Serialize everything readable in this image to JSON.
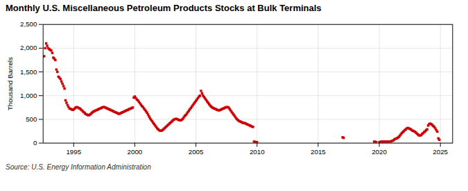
{
  "chart_data": {
    "type": "scatter",
    "title": "Monthly U.S. Miscellaneous Petroleum Products Stocks at Bulk Terminals",
    "ylabel": "Thousand Barrels",
    "annotations": [
      "Source: U.S. Energy Information Administration"
    ],
    "color": "#cc0000",
    "marker": "square",
    "grid": true,
    "xlim": [
      1992.5,
      2026.0
    ],
    "ylim": [
      0,
      2500
    ],
    "xticks": [
      1995,
      2000,
      2005,
      2010,
      2015,
      2020,
      2025
    ],
    "yticks": [
      0,
      500,
      {
        "value": 1000,
        "label": "1,000"
      },
      {
        "value": 1500,
        "label": "1,500"
      },
      {
        "value": 2000,
        "label": "2,000"
      },
      {
        "value": 2500,
        "label": "2,500"
      }
    ],
    "x": [
      1992.583,
      1992.667,
      1992.75,
      1992.833,
      1992.917,
      1993.0,
      1993.083,
      1993.167,
      1993.25,
      1993.333,
      1993.417,
      1993.5,
      1993.583,
      1993.667,
      1993.75,
      1993.833,
      1993.917,
      1994.0,
      1994.083,
      1994.167,
      1994.25,
      1994.333,
      1994.417,
      1994.5,
      1994.583,
      1994.667,
      1994.75,
      1994.833,
      1994.917,
      1995.0,
      1995.083,
      1995.167,
      1995.25,
      1995.333,
      1995.417,
      1995.5,
      1995.583,
      1995.667,
      1995.75,
      1995.833,
      1995.917,
      1996.0,
      1996.083,
      1996.167,
      1996.25,
      1996.333,
      1996.417,
      1996.5,
      1996.583,
      1996.667,
      1996.75,
      1996.833,
      1996.917,
      1997.0,
      1997.083,
      1997.167,
      1997.25,
      1997.333,
      1997.417,
      1997.5,
      1997.583,
      1997.667,
      1997.75,
      1997.833,
      1997.917,
      1998.0,
      1998.083,
      1998.167,
      1998.25,
      1998.333,
      1998.417,
      1998.5,
      1998.583,
      1998.667,
      1998.75,
      1998.833,
      1998.917,
      1999.0,
      1999.083,
      1999.167,
      1999.25,
      1999.333,
      1999.417,
      1999.5,
      1999.583,
      1999.667,
      1999.75,
      1999.833,
      1999.917,
      2000.0,
      2000.083,
      2000.167,
      2000.25,
      2000.333,
      2000.417,
      2000.5,
      2000.583,
      2000.667,
      2000.75,
      2000.833,
      2000.917,
      2001.0,
      2001.083,
      2001.167,
      2001.25,
      2001.333,
      2001.417,
      2001.5,
      2001.583,
      2001.667,
      2001.75,
      2001.833,
      2001.917,
      2002.0,
      2002.083,
      2002.167,
      2002.25,
      2002.333,
      2002.417,
      2002.5,
      2002.583,
      2002.667,
      2002.75,
      2002.833,
      2002.917,
      2003.0,
      2003.083,
      2003.167,
      2003.25,
      2003.333,
      2003.417,
      2003.5,
      2003.583,
      2003.667,
      2003.75,
      2003.833,
      2003.917,
      2004.0,
      2004.083,
      2004.167,
      2004.25,
      2004.333,
      2004.417,
      2004.5,
      2004.583,
      2004.667,
      2004.75,
      2004.833,
      2004.917,
      2005.0,
      2005.083,
      2005.167,
      2005.25,
      2005.333,
      2005.417,
      2005.5,
      2005.583,
      2005.667,
      2005.75,
      2005.833,
      2005.917,
      2006.0,
      2006.083,
      2006.167,
      2006.25,
      2006.333,
      2006.417,
      2006.5,
      2006.583,
      2006.667,
      2006.75,
      2006.833,
      2006.917,
      2007.0,
      2007.083,
      2007.167,
      2007.25,
      2007.333,
      2007.417,
      2007.5,
      2007.583,
      2007.667,
      2007.75,
      2007.833,
      2007.917,
      2008.0,
      2008.083,
      2008.167,
      2008.25,
      2008.333,
      2008.417,
      2008.5,
      2008.583,
      2008.667,
      2008.75,
      2008.833,
      2008.917,
      2009.0,
      2009.083,
      2009.167,
      2009.25,
      2009.333,
      2009.417,
      2009.5,
      2009.583,
      2009.667,
      2009.75,
      2009.833,
      2009.917,
      2010.0,
      2017.0,
      2017.083,
      2019.583,
      2019.667,
      2019.75,
      2020.0,
      2020.083,
      2020.167,
      2020.25,
      2020.333,
      2020.417,
      2020.5,
      2020.583,
      2020.667,
      2020.75,
      2020.833,
      2020.917,
      2021.0,
      2021.083,
      2021.167,
      2021.25,
      2021.333,
      2021.417,
      2021.5,
      2021.583,
      2021.667,
      2021.75,
      2021.833,
      2021.917,
      2022.0,
      2022.083,
      2022.167,
      2022.25,
      2022.333,
      2022.417,
      2022.5,
      2022.583,
      2022.667,
      2022.75,
      2022.833,
      2022.917,
      2023.0,
      2023.083,
      2023.167,
      2023.25,
      2023.333,
      2023.417,
      2023.5,
      2023.583,
      2023.667,
      2023.75,
      2023.833,
      2023.917,
      2024.0,
      2024.083,
      2024.167,
      2024.25,
      2024.333,
      2024.417,
      2024.5,
      2024.583,
      2024.667,
      2024.75,
      2024.833,
      2024.917
    ],
    "values": [
      1830,
      2000,
      2100,
      2050,
      2000,
      1980,
      1960,
      1950,
      1900,
      1800,
      1780,
      1750,
      1550,
      1500,
      1400,
      1380,
      1350,
      1300,
      1250,
      1200,
      1150,
      900,
      850,
      800,
      760,
      730,
      720,
      710,
      700,
      710,
      730,
      750,
      760,
      750,
      740,
      730,
      710,
      690,
      670,
      650,
      630,
      610,
      600,
      590,
      590,
      600,
      620,
      640,
      660,
      670,
      680,
      690,
      700,
      710,
      720,
      730,
      740,
      750,
      760,
      760,
      750,
      740,
      730,
      720,
      710,
      700,
      690,
      680,
      670,
      660,
      650,
      640,
      630,
      620,
      620,
      630,
      640,
      650,
      660,
      670,
      680,
      690,
      700,
      710,
      720,
      730,
      740,
      750,
      960,
      980,
      950,
      920,
      900,
      870,
      840,
      810,
      780,
      760,
      730,
      700,
      670,
      640,
      600,
      560,
      520,
      490,
      460,
      430,
      400,
      370,
      340,
      310,
      290,
      270,
      260,
      260,
      270,
      290,
      310,
      330,
      350,
      370,
      390,
      410,
      430,
      450,
      470,
      490,
      500,
      510,
      510,
      500,
      490,
      480,
      480,
      490,
      510,
      540,
      570,
      590,
      620,
      650,
      680,
      710,
      740,
      770,
      800,
      830,
      860,
      890,
      920,
      950,
      980,
      1000,
      1100,
      1050,
      1000,
      970,
      940,
      910,
      880,
      850,
      820,
      790,
      770,
      750,
      740,
      730,
      720,
      710,
      700,
      690,
      690,
      700,
      710,
      720,
      730,
      740,
      750,
      760,
      760,
      750,
      720,
      690,
      660,
      630,
      600,
      570,
      540,
      510,
      490,
      470,
      460,
      450,
      440,
      430,
      420,
      420,
      410,
      400,
      390,
      380,
      370,
      360,
      350,
      340,
      30,
      25,
      20,
      20,
      120,
      110,
      30,
      25,
      20,
      20,
      25,
      30,
      30,
      30,
      30,
      30,
      30,
      30,
      30,
      30,
      30,
      40,
      50,
      60,
      80,
      90,
      100,
      110,
      130,
      150,
      180,
      210,
      230,
      250,
      270,
      290,
      310,
      320,
      310,
      300,
      290,
      270,
      260,
      250,
      240,
      220,
      200,
      180,
      160,
      160,
      170,
      190,
      210,
      230,
      250,
      270,
      290,
      370,
      400,
      410,
      400,
      380,
      360,
      340,
      310,
      270,
      240,
      100,
      70
    ]
  }
}
